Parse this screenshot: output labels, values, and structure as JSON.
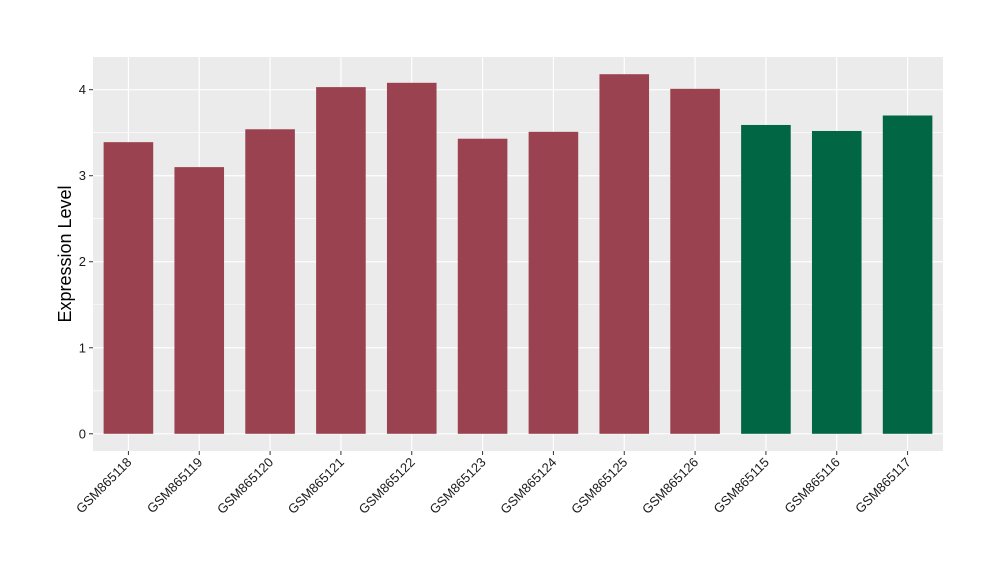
{
  "chart_data": {
    "type": "bar",
    "ylabel": "Expression Level",
    "xlabel": "",
    "categories": [
      "GSM865118",
      "GSM865119",
      "GSM865120",
      "GSM865121",
      "GSM865122",
      "GSM865123",
      "GSM865124",
      "GSM865125",
      "GSM865126",
      "GSM865115",
      "GSM865116",
      "GSM865117"
    ],
    "values": [
      3.39,
      3.1,
      3.54,
      4.03,
      4.08,
      3.43,
      3.51,
      4.18,
      4.01,
      3.59,
      3.52,
      3.7
    ],
    "groups": [
      "a",
      "a",
      "a",
      "a",
      "a",
      "a",
      "a",
      "a",
      "a",
      "b",
      "b",
      "b"
    ],
    "group_colors": {
      "a": "#9a4250",
      "b": "#006644"
    },
    "ylim": [
      -0.2,
      4.38
    ],
    "yticks": [
      0,
      1,
      2,
      3,
      4
    ],
    "ytick_labels": [
      "0",
      "1",
      "2",
      "3",
      "4"
    ],
    "grid": true,
    "panel_background": "#ebebeb",
    "grid_color": "#ffffff"
  }
}
